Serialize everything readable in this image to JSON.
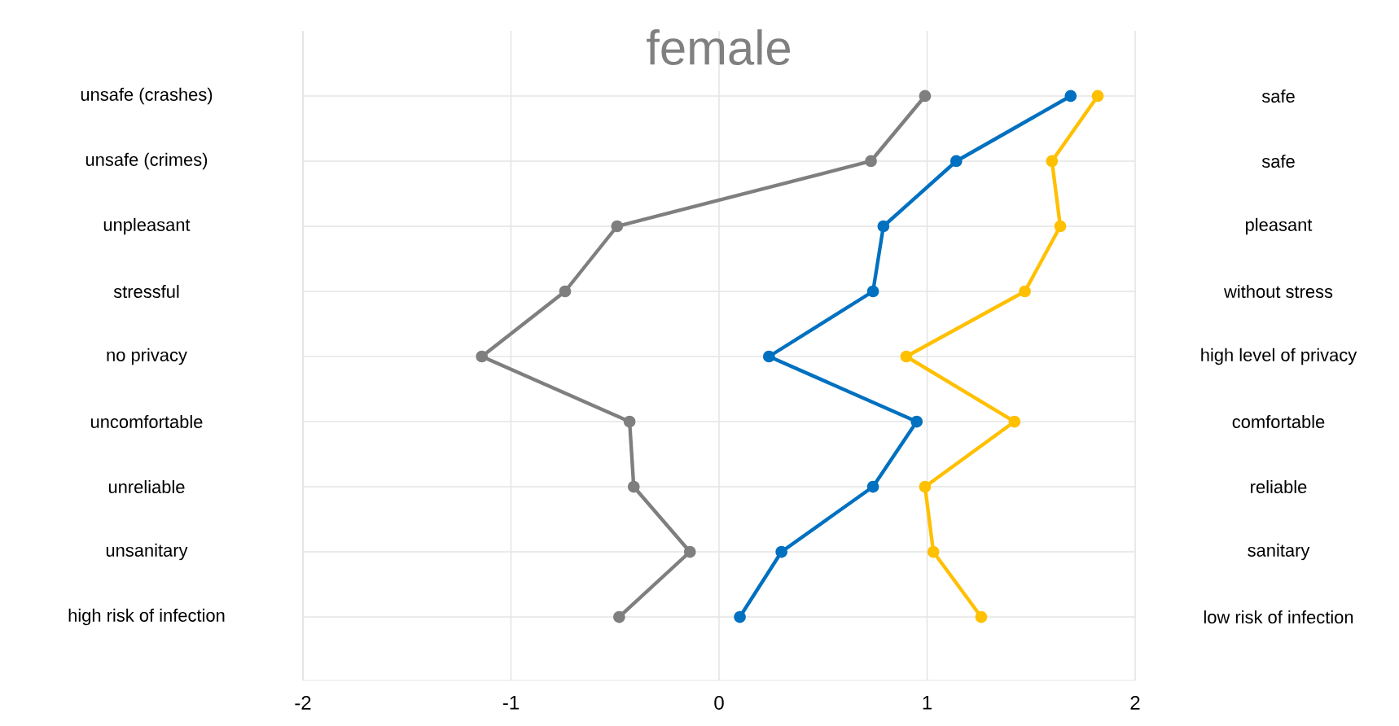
{
  "chart_data": {
    "type": "line",
    "orientation": "horizontal",
    "title": "female",
    "categories": [
      "unsafe (crashes)",
      "unsafe (crimes)",
      "unpleasant",
      "stressful",
      "no privacy",
      "uncomfortable",
      "unreliable",
      "unsanitary",
      "high risk of infection"
    ],
    "y2_categories": [
      "safe",
      "safe",
      "pleasant",
      "without stress",
      "high level of privacy",
      "comfortable",
      "reliable",
      "sanitary",
      "low risk of infection"
    ],
    "series": [
      {
        "color": "#7f7f7f",
        "values": [
          0.99,
          0.73,
          -0.49,
          -0.74,
          -1.14,
          -0.43,
          -0.41,
          -0.14,
          -0.48
        ]
      },
      {
        "color": "#0070c0",
        "values": [
          1.69,
          1.14,
          0.79,
          0.74,
          0.24,
          0.95,
          0.74,
          0.3,
          0.1
        ]
      },
      {
        "color": "#ffc000",
        "values": [
          1.82,
          1.6,
          1.64,
          1.47,
          0.9,
          1.42,
          0.99,
          1.03,
          1.26
        ]
      }
    ],
    "xlim": [
      -2,
      2
    ],
    "xticks": [
      -2,
      -1,
      0,
      1,
      2
    ],
    "grid": true,
    "marker": "circle",
    "line_style": "solid"
  }
}
